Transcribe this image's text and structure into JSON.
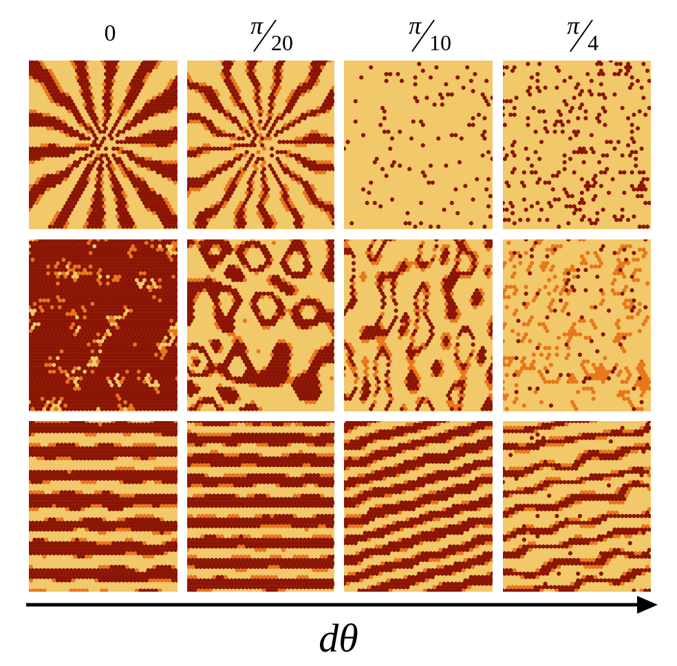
{
  "column_labels": [
    {
      "type": "plain",
      "text": "0"
    },
    {
      "type": "fraction",
      "numerator": "π",
      "denominator": "20"
    },
    {
      "type": "fraction",
      "numerator": "π",
      "denominator": "10"
    },
    {
      "type": "fraction",
      "numerator": "π",
      "denominator": "4"
    }
  ],
  "axis": {
    "label": "dθ"
  },
  "colors": {
    "background_light": "#f1c86a",
    "dark_red": "#8a1404",
    "orange": "#e8761a",
    "arrow": "#000000"
  },
  "panels": [
    {
      "row": 0,
      "col": 0,
      "pattern": "radial-stripes"
    },
    {
      "row": 0,
      "col": 1,
      "pattern": "radial-branches"
    },
    {
      "row": 0,
      "col": 2,
      "pattern": "radial-dotted"
    },
    {
      "row": 0,
      "col": 3,
      "pattern": "sparse-dots"
    },
    {
      "row": 1,
      "col": 0,
      "pattern": "dense-noise"
    },
    {
      "row": 1,
      "col": 1,
      "pattern": "labyrinth"
    },
    {
      "row": 1,
      "col": 2,
      "pattern": "labyrinth-sparse"
    },
    {
      "row": 1,
      "col": 3,
      "pattern": "dots-labyrinth"
    },
    {
      "row": 2,
      "col": 0,
      "pattern": "horizontal-stripes"
    },
    {
      "row": 2,
      "col": 1,
      "pattern": "horizontal-stripes-dense"
    },
    {
      "row": 2,
      "col": 2,
      "pattern": "diagonal-stripes"
    },
    {
      "row": 2,
      "col": 3,
      "pattern": "broken-stripes"
    }
  ]
}
